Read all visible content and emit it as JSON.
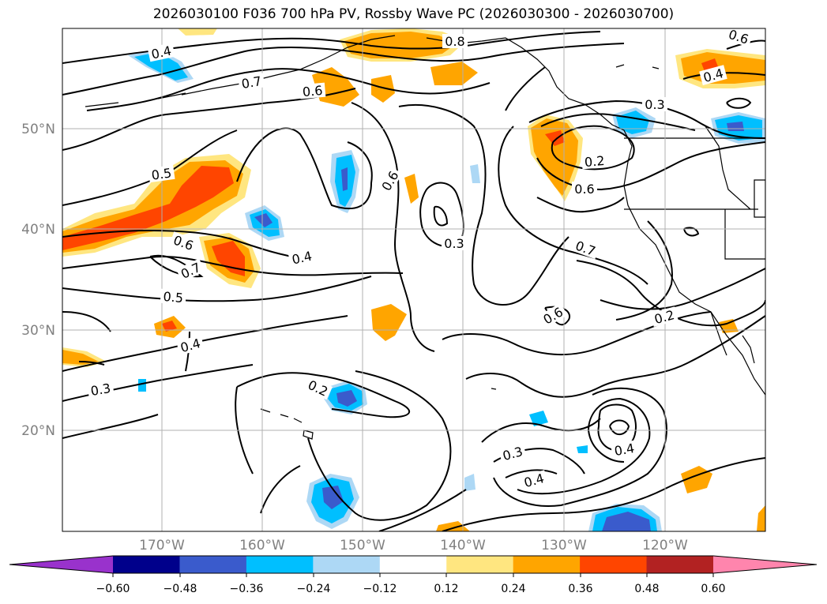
{
  "title": "2026030100 F036 700 hPa PV, Rossby Wave PC (2026030300 - 2026030700)",
  "map": {
    "lat_labels": [
      "50°N",
      "40°N",
      "30°N",
      "20°N"
    ],
    "lon_labels": [
      "170°W",
      "160°W",
      "150°W",
      "140°W",
      "130°W",
      "120°W"
    ],
    "lat_label_color": "#808080",
    "lon_label_color": "#808080"
  },
  "contour_labels": [
    "0.4",
    "0.8",
    "0.6",
    "0.7",
    "0.6",
    "0.4",
    "0.3",
    "0.2",
    "0.6",
    "0.5",
    "0.6",
    "0.4",
    "0.7",
    "0.6",
    "0.3",
    "0.7",
    "0.5",
    "0.4",
    "0.6",
    "0.2",
    "0.3",
    "0.2",
    "0.4",
    "0.3",
    "0.4"
  ],
  "colorbar": {
    "ticks": [
      "−0.60",
      "−0.48",
      "−0.36",
      "−0.24",
      "−0.12",
      "0.12",
      "0.24",
      "0.36",
      "0.48",
      "0.60"
    ],
    "colors": [
      "#9932cc",
      "#00008b",
      "#3a5bcc",
      "#00bfff",
      "#add8f5",
      "#ffffff",
      "#ffe680",
      "#ffa500",
      "#ff4500",
      "#b22222",
      "#ff85ad"
    ]
  }
}
